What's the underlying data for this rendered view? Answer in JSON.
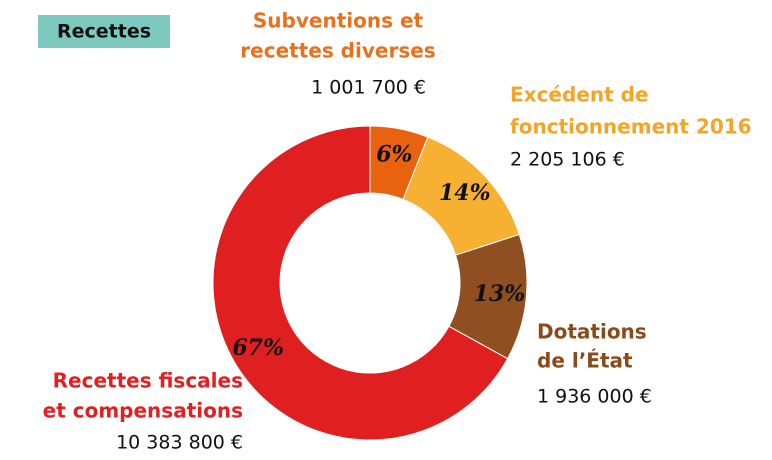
{
  "chart_data": {
    "type": "donut",
    "title": "Recettes",
    "categories": [
      [
        "Subventions et",
        "recettes diverses"
      ],
      [
        "Excédent de",
        "fonctionnement 2016"
      ],
      [
        "Dotations",
        "de l’État"
      ],
      [
        "Recettes fiscales",
        "et compensations"
      ]
    ],
    "values": [
      6,
      14,
      13,
      67
    ],
    "value_labels": [
      "6%",
      "14%",
      "13%",
      "67%"
    ],
    "amounts": [
      1001700,
      2205106,
      1936000,
      10383800
    ],
    "amount_labels": [
      "1 001 700 €",
      "2 205 106 €",
      "1 936 000 €",
      "10 383 800 €"
    ],
    "colors": [
      "#e8620f",
      "#f6b133",
      "#8f4f21",
      "#e02020"
    ],
    "label_colors": [
      "#e8711c",
      "#f3a52a",
      "#8b4a1c",
      "#e02121"
    ]
  }
}
